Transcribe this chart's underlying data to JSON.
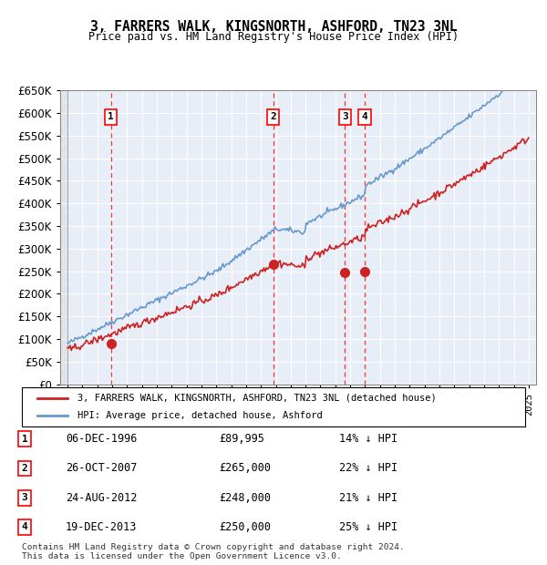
{
  "title": "3, FARRERS WALK, KINGSNORTH, ASHFORD, TN23 3NL",
  "subtitle": "Price paid vs. HM Land Registry's House Price Index (HPI)",
  "ylabel": "",
  "ylim": [
    0,
    650000
  ],
  "yticks": [
    0,
    50000,
    100000,
    150000,
    200000,
    250000,
    300000,
    350000,
    400000,
    450000,
    500000,
    550000,
    600000,
    650000
  ],
  "ytick_labels": [
    "£0",
    "£50K",
    "£100K",
    "£150K",
    "£200K",
    "£250K",
    "£300K",
    "£350K",
    "£400K",
    "£450K",
    "£500K",
    "£550K",
    "£600K",
    "£650K"
  ],
  "xlim_start": 1993.5,
  "xlim_end": 2025.5,
  "hpi_color": "#6699cc",
  "property_color": "#cc2222",
  "bg_color": "#e8eef8",
  "grid_color": "#ffffff",
  "transactions": [
    {
      "num": 1,
      "year_x": 1996.92,
      "price": 89995,
      "label": "1",
      "date": "06-DEC-1996",
      "price_str": "£89,995",
      "hpi_pct": "14% ↓ HPI"
    },
    {
      "num": 2,
      "year_x": 2007.82,
      "price": 265000,
      "label": "2",
      "date": "26-OCT-2007",
      "price_str": "£265,000",
      "hpi_pct": "22% ↓ HPI"
    },
    {
      "num": 3,
      "year_x": 2012.65,
      "price": 248000,
      "label": "3",
      "date": "24-AUG-2012",
      "price_str": "£248,000",
      "hpi_pct": "21% ↓ HPI"
    },
    {
      "num": 4,
      "year_x": 2013.97,
      "price": 250000,
      "label": "4",
      "date": "19-DEC-2013",
      "price_str": "£250,000",
      "hpi_pct": "25% ↓ HPI"
    }
  ],
  "legend_line1": "3, FARRERS WALK, KINGSNORTH, ASHFORD, TN23 3NL (detached house)",
  "legend_line2": "HPI: Average price, detached house, Ashford",
  "footer": "Contains HM Land Registry data © Crown copyright and database right 2024.\nThis data is licensed under the Open Government Licence v3.0."
}
